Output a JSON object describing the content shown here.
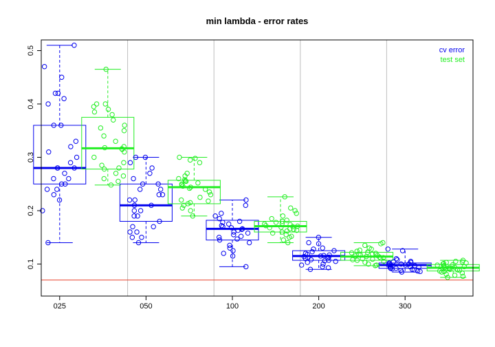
{
  "chart_data": {
    "type": "boxplot",
    "title": "min lambda - error rates",
    "xlabel": "",
    "ylabel": "",
    "categories": [
      "025",
      "050",
      "100",
      "200",
      "300"
    ],
    "ylim": [
      0.04,
      0.52
    ],
    "yticks": [
      0.1,
      0.2,
      0.3,
      0.4,
      0.5
    ],
    "yticklabels": [
      "0.1",
      "0.2",
      "0.3",
      "0.4",
      "0.5"
    ],
    "reference_line": {
      "y": 0.07,
      "color": "#e8402b"
    },
    "legend": {
      "placement": "top-right"
    },
    "series": [
      {
        "name": "cv error",
        "color": "#0000ee",
        "boxes": [
          {
            "min": 0.14,
            "q1": 0.25,
            "median": 0.28,
            "q3": 0.36,
            "max": 0.51,
            "points": [
              0.51,
              0.47,
              0.45,
              0.42,
              0.42,
              0.41,
              0.4,
              0.36,
              0.36,
              0.33,
              0.32,
              0.31,
              0.3,
              0.29,
              0.28,
              0.28,
              0.28,
              0.27,
              0.26,
              0.26,
              0.25,
              0.25,
              0.24,
              0.24,
              0.23,
              0.22,
              0.2,
              0.14
            ]
          },
          {
            "min": 0.14,
            "q1": 0.18,
            "median": 0.21,
            "q3": 0.25,
            "max": 0.3,
            "points": [
              0.3,
              0.3,
              0.29,
              0.28,
              0.27,
              0.26,
              0.25,
              0.25,
              0.24,
              0.24,
              0.23,
              0.23,
              0.22,
              0.22,
              0.21,
              0.21,
              0.2,
              0.2,
              0.19,
              0.19,
              0.18,
              0.17,
              0.17,
              0.16,
              0.16,
              0.15,
              0.15,
              0.14
            ]
          },
          {
            "min": 0.095,
            "q1": 0.145,
            "median": 0.166,
            "q3": 0.182,
            "max": 0.22,
            "points": [
              0.22,
              0.21,
              0.195,
              0.19,
              0.185,
              0.18,
              0.178,
              0.175,
              0.172,
              0.17,
              0.168,
              0.166,
              0.165,
              0.163,
              0.16,
              0.158,
              0.155,
              0.152,
              0.15,
              0.147,
              0.145,
              0.14,
              0.135,
              0.13,
              0.125,
              0.12,
              0.115,
              0.095
            ]
          },
          {
            "min": 0.09,
            "q1": 0.107,
            "median": 0.115,
            "q3": 0.125,
            "max": 0.15,
            "points": [
              0.15,
              0.14,
              0.138,
              0.13,
              0.128,
              0.125,
              0.123,
              0.12,
              0.118,
              0.117,
              0.116,
              0.115,
              0.114,
              0.113,
              0.112,
              0.111,
              0.11,
              0.108,
              0.107,
              0.106,
              0.105,
              0.103,
              0.1,
              0.098,
              0.095,
              0.093,
              0.09
            ]
          },
          {
            "min": 0.085,
            "q1": 0.092,
            "median": 0.098,
            "q3": 0.102,
            "max": 0.128,
            "points": [
              0.128,
              0.125,
              0.11,
              0.108,
              0.105,
              0.104,
              0.103,
              0.102,
              0.101,
              0.1,
              0.1,
              0.099,
              0.098,
              0.098,
              0.097,
              0.096,
              0.095,
              0.094,
              0.093,
              0.092,
              0.092,
              0.091,
              0.09,
              0.089,
              0.088,
              0.087,
              0.086,
              0.085
            ]
          }
        ]
      },
      {
        "name": "test set",
        "color": "#22ee22",
        "boxes": [
          {
            "min": 0.248,
            "q1": 0.278,
            "median": 0.317,
            "q3": 0.375,
            "max": 0.465,
            "points": [
              0.465,
              0.4,
              0.4,
              0.395,
              0.39,
              0.385,
              0.38,
              0.37,
              0.36,
              0.355,
              0.35,
              0.34,
              0.33,
              0.32,
              0.318,
              0.316,
              0.315,
              0.31,
              0.3,
              0.29,
              0.285,
              0.28,
              0.278,
              0.27,
              0.265,
              0.26,
              0.255,
              0.248
            ]
          },
          {
            "min": 0.19,
            "q1": 0.213,
            "median": 0.244,
            "q3": 0.257,
            "max": 0.3,
            "points": [
              0.3,
              0.298,
              0.295,
              0.29,
              0.27,
              0.265,
              0.26,
              0.258,
              0.256,
              0.255,
              0.252,
              0.25,
              0.248,
              0.246,
              0.244,
              0.242,
              0.24,
              0.235,
              0.23,
              0.225,
              0.22,
              0.218,
              0.215,
              0.213,
              0.21,
              0.205,
              0.2,
              0.19
            ]
          },
          {
            "min": 0.14,
            "q1": 0.16,
            "median": 0.171,
            "q3": 0.18,
            "max": 0.226,
            "points": [
              0.226,
              0.205,
              0.2,
              0.195,
              0.19,
              0.185,
              0.182,
              0.18,
              0.178,
              0.176,
              0.175,
              0.174,
              0.172,
              0.171,
              0.17,
              0.169,
              0.168,
              0.166,
              0.165,
              0.163,
              0.162,
              0.16,
              0.158,
              0.155,
              0.152,
              0.15,
              0.145,
              0.14
            ]
          },
          {
            "min": 0.097,
            "q1": 0.107,
            "median": 0.114,
            "q3": 0.122,
            "max": 0.14,
            "points": [
              0.14,
              0.138,
              0.135,
              0.13,
              0.128,
              0.126,
              0.124,
              0.122,
              0.121,
              0.12,
              0.119,
              0.118,
              0.117,
              0.116,
              0.115,
              0.114,
              0.113,
              0.112,
              0.111,
              0.11,
              0.109,
              0.108,
              0.107,
              0.105,
              0.103,
              0.1,
              0.098,
              0.097
            ]
          },
          {
            "min": 0.075,
            "q1": 0.087,
            "median": 0.093,
            "q3": 0.099,
            "max": 0.107,
            "points": [
              0.107,
              0.105,
              0.104,
              0.103,
              0.102,
              0.101,
              0.1,
              0.099,
              0.098,
              0.097,
              0.096,
              0.095,
              0.094,
              0.093,
              0.093,
              0.092,
              0.091,
              0.09,
              0.089,
              0.088,
              0.087,
              0.086,
              0.085,
              0.083,
              0.081,
              0.079,
              0.077,
              0.075
            ]
          }
        ]
      }
    ]
  }
}
